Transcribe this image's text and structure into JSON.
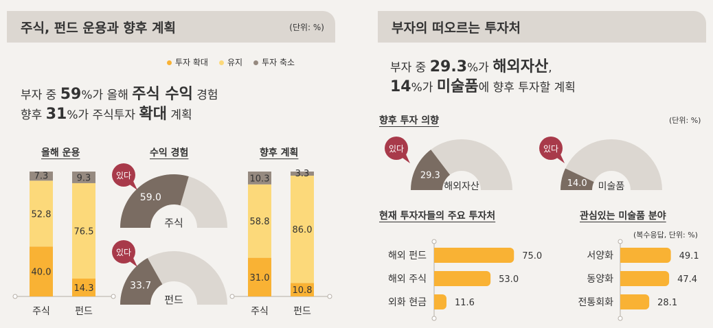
{
  "left": {
    "title": "주식, 펀드 운용과 향후 계획",
    "unit": "(단위: %)",
    "legend": [
      {
        "label": "투자 확대",
        "color": "#f9b234"
      },
      {
        "label": "유지",
        "color": "#fcd97a"
      },
      {
        "label": "투자 축소",
        "color": "#968a80"
      }
    ],
    "headline": {
      "l1a": "부자 중 ",
      "l1n": "59",
      "l1b": "%가 올해 ",
      "l1c": "주식 수익",
      "l1d": " 경험",
      "l2a": "향후 ",
      "l2n": "31",
      "l2b": "%가 주식투자 ",
      "l2c": "확대",
      "l2d": " 계획"
    }
  },
  "right": {
    "title": "부자의 떠오르는 투자처",
    "headline": {
      "l1a": "부자 중 ",
      "l1n": "29.3",
      "l1b": "%가 ",
      "l1c": "해외자산",
      "l1d": ",",
      "l2n": "14",
      "l2b": "%가 ",
      "l2c": "미술품",
      "l2d": "에 향후 투자할 계획"
    },
    "intent_title": "향후 투자 의향",
    "intent_unit": "(단위: %)",
    "main_title": "현재 투자자들의 주요 투자처",
    "art_title": "관심있는 미술품 분야",
    "art_unit": "(복수응답, 단위: %)"
  },
  "chart_data": [
    {
      "type": "bar",
      "title": "올해 운용",
      "categories": [
        "주식",
        "펀드"
      ],
      "series": [
        {
          "name": "투자 확대",
          "values": [
            40.0,
            14.3
          ]
        },
        {
          "name": "유지",
          "values": [
            52.8,
            76.5
          ]
        },
        {
          "name": "투자 축소",
          "values": [
            7.3,
            9.3
          ]
        }
      ],
      "labels": [
        [
          "40.0",
          "14.3"
        ],
        [
          "52.8",
          "76.5"
        ],
        [
          "7.3",
          "9.3"
        ]
      ]
    },
    {
      "type": "pie",
      "title": "수익 경험",
      "badge": "있다",
      "gauges": [
        {
          "label": "주식",
          "value": 59.0,
          "text": "59.0"
        },
        {
          "label": "펀드",
          "value": 33.7,
          "text": "33.7"
        }
      ]
    },
    {
      "type": "bar",
      "title": "향후 계획",
      "categories": [
        "주식",
        "펀드"
      ],
      "series": [
        {
          "name": "투자 확대",
          "values": [
            31.0,
            10.8
          ]
        },
        {
          "name": "유지",
          "values": [
            58.8,
            86.0
          ]
        },
        {
          "name": "투자 축소",
          "values": [
            10.3,
            3.3
          ]
        }
      ],
      "labels": [
        [
          "31.0",
          "10.8"
        ],
        [
          "58.8",
          "86.0"
        ],
        [
          "10.3",
          "3.3"
        ]
      ]
    },
    {
      "type": "pie",
      "title": "향후 투자 의향",
      "badge": "있다",
      "gauges": [
        {
          "label": "해외자산",
          "value": 29.3,
          "text": "29.3"
        },
        {
          "label": "미술품",
          "value": 14.0,
          "text": "14.0"
        }
      ]
    },
    {
      "type": "bar",
      "title": "현재 투자자들의 주요 투자처",
      "orientation": "horizontal",
      "categories": [
        "해외 펀드",
        "해외 주식",
        "외화 현금"
      ],
      "values": [
        75.0,
        53.0,
        11.6
      ],
      "labels": [
        "75.0",
        "53.0",
        "11.6"
      ],
      "xlim": [
        0,
        100
      ]
    },
    {
      "type": "bar",
      "title": "관심있는 미술품 분야",
      "orientation": "horizontal",
      "categories": [
        "서양화",
        "동양화",
        "전통회화"
      ],
      "values": [
        49.1,
        47.4,
        28.1
      ],
      "labels": [
        "49.1",
        "47.4",
        "28.1"
      ],
      "xlim": [
        0,
        100
      ]
    }
  ]
}
